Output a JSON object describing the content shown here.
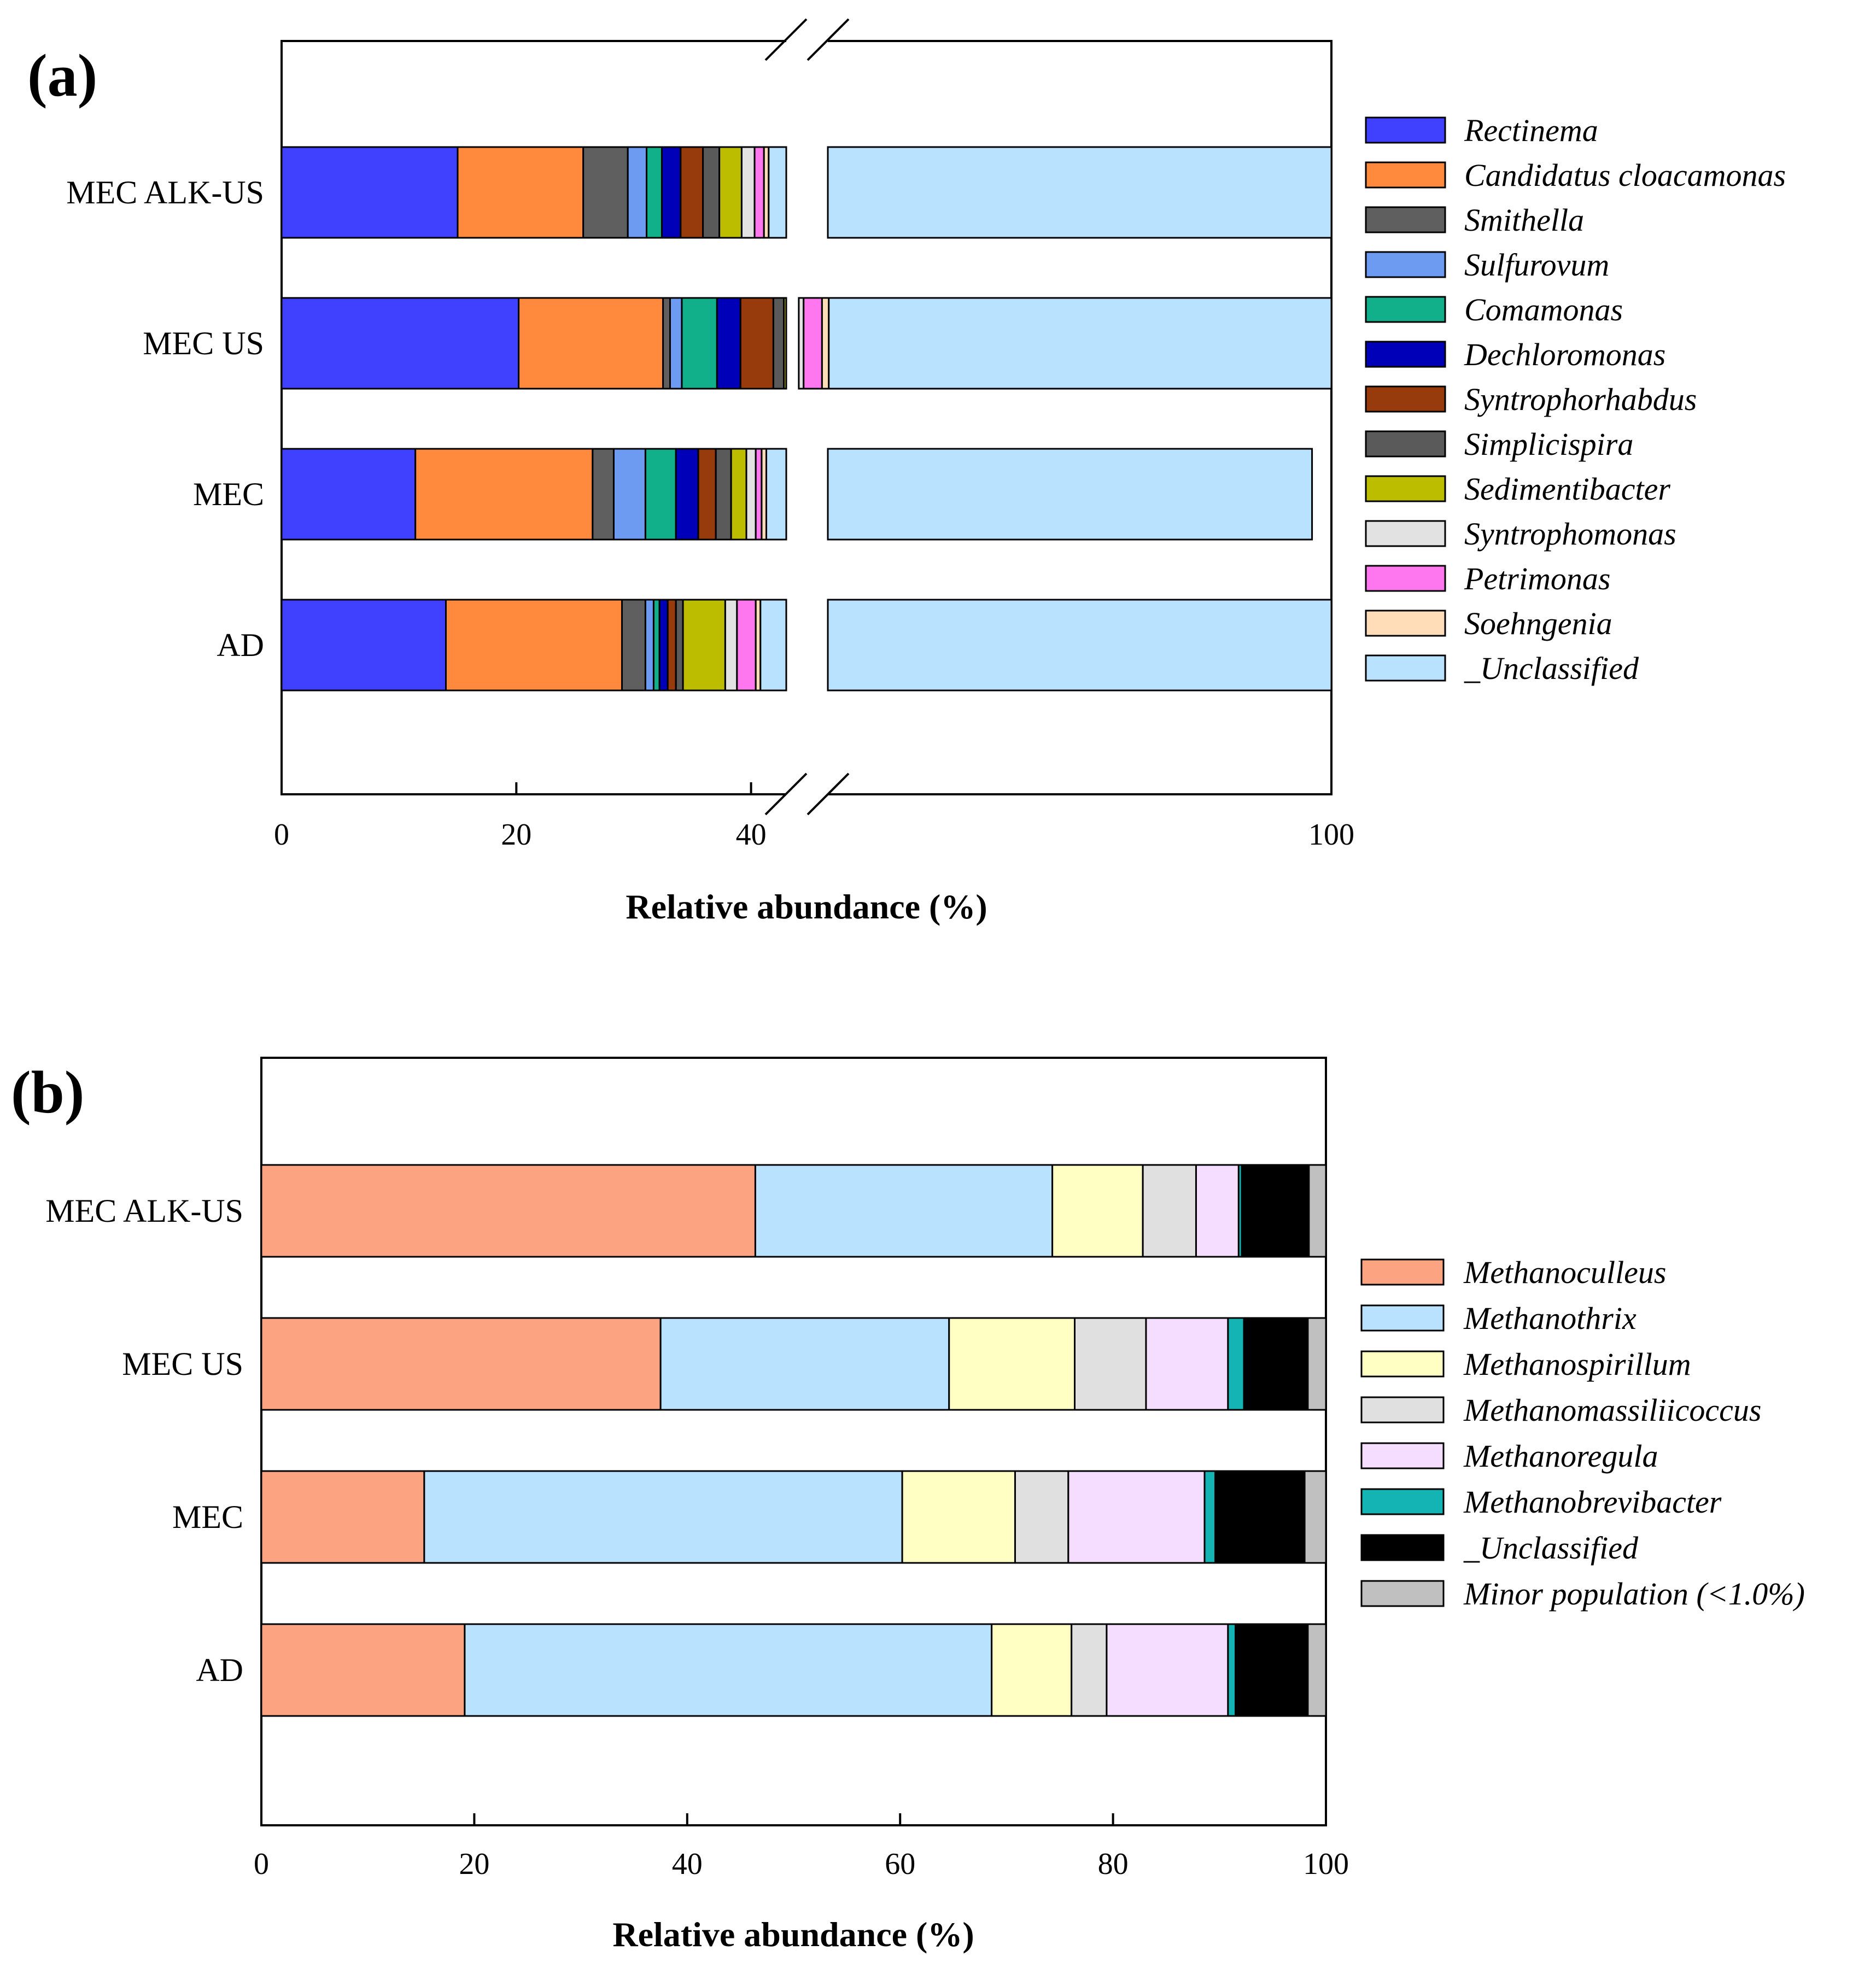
{
  "chart_data": [
    {
      "panel": "(a)",
      "type": "bar",
      "orientation": "horizontal",
      "stacked": true,
      "axis_break": [
        43,
        48
      ],
      "xlabel": "Relative abundance (%)",
      "xlim": [
        0,
        100
      ],
      "xticks": [
        {
          "value": 0,
          "label": "0"
        },
        {
          "value": 20,
          "label": "20"
        },
        {
          "value": 40,
          "label": "40"
        },
        {
          "value": 100,
          "label": "100"
        }
      ],
      "categories": [
        "MEC ALK-US",
        "MEC US",
        "MEC",
        "AD"
      ],
      "legend_position": "right",
      "series": [
        {
          "name": "Rectinema",
          "color": "#4040FF",
          "values": [
            15.0,
            20.2,
            11.4,
            14.0
          ]
        },
        {
          "name": "Candidatus cloacamonas",
          "color": "#FF8A3D",
          "values": [
            10.7,
            12.3,
            15.1,
            15.0
          ]
        },
        {
          "name": "Smithella",
          "color": "#5F5F5F",
          "values": [
            3.8,
            0.6,
            1.8,
            2.0
          ]
        },
        {
          "name": "Sulfurovum",
          "color": "#6E9BF2",
          "values": [
            1.6,
            1.0,
            2.7,
            0.7
          ]
        },
        {
          "name": "Comamonas",
          "color": "#12B08A",
          "values": [
            1.3,
            3.0,
            2.6,
            0.5
          ]
        },
        {
          "name": "Dechloromonas",
          "color": "#0000B8",
          "values": [
            1.6,
            2.0,
            1.9,
            0.7
          ]
        },
        {
          "name": "Syntrophorhabdus",
          "color": "#973B0D",
          "values": [
            1.9,
            2.8,
            1.5,
            0.7
          ]
        },
        {
          "name": "Simplicispira",
          "color": "#5A5A5A",
          "values": [
            1.4,
            0.9,
            1.3,
            0.6
          ]
        },
        {
          "name": "Sedimentibacter",
          "color": "#BDBD00",
          "values": [
            1.9,
            2.2,
            1.3,
            3.6
          ]
        },
        {
          "name": "Syntrophomonas",
          "color": "#E2E2E2",
          "values": [
            1.1,
            0.5,
            0.8,
            1.0
          ]
        },
        {
          "name": "Petrimonas",
          "color": "#FF77EE",
          "values": [
            0.8,
            1.9,
            0.5,
            1.6
          ]
        },
        {
          "name": "Soehngenia",
          "color": "#FFDDB8",
          "values": [
            0.4,
            0.7,
            0.4,
            0.4
          ]
        },
        {
          "name": "_Unclassified",
          "color": "#B8E2FF",
          "values": [
            58.5,
            51.9,
            56.7,
            59.2
          ]
        }
      ]
    },
    {
      "panel": "(b)",
      "type": "bar",
      "orientation": "horizontal",
      "stacked": true,
      "xlabel": "Relative abundance (%)",
      "xlim": [
        0,
        100
      ],
      "xticks": [
        {
          "value": 0,
          "label": "0"
        },
        {
          "value": 20,
          "label": "20"
        },
        {
          "value": 40,
          "label": "40"
        },
        {
          "value": 60,
          "label": "60"
        },
        {
          "value": 80,
          "label": "80"
        },
        {
          "value": 100,
          "label": "100"
        }
      ],
      "categories": [
        "MEC ALK-US",
        "MEC US",
        "MEC",
        "AD"
      ],
      "legend_position": "right",
      "series": [
        {
          "name": "Methanoculleus",
          "color": "#FCA382",
          "values": [
            46.4,
            37.5,
            15.3,
            19.1
          ]
        },
        {
          "name": "Methanothrix",
          "color": "#B8E2FF",
          "values": [
            27.9,
            27.1,
            44.9,
            49.5
          ]
        },
        {
          "name": "Methanospirillum",
          "color": "#FFFFC4",
          "values": [
            8.5,
            11.8,
            10.6,
            7.5
          ]
        },
        {
          "name": "Methanomassiliicoccus",
          "color": "#E0E0E0",
          "values": [
            5.0,
            6.7,
            5.0,
            3.3
          ]
        },
        {
          "name": "Methanoregula",
          "color": "#F5DDFF",
          "values": [
            4.0,
            7.7,
            12.8,
            11.4
          ]
        },
        {
          "name": "Methanobrevibacter",
          "color": "#14B4B4",
          "values": [
            0.3,
            1.5,
            1.0,
            0.7
          ]
        },
        {
          "name": "_Unclassified",
          "color": "#000000",
          "values": [
            6.3,
            6.0,
            8.4,
            6.8
          ]
        },
        {
          "name": "Minor population (<1.0%)",
          "color": "#C0C0C0",
          "values": [
            1.6,
            1.7,
            2.0,
            1.7
          ]
        }
      ]
    }
  ]
}
